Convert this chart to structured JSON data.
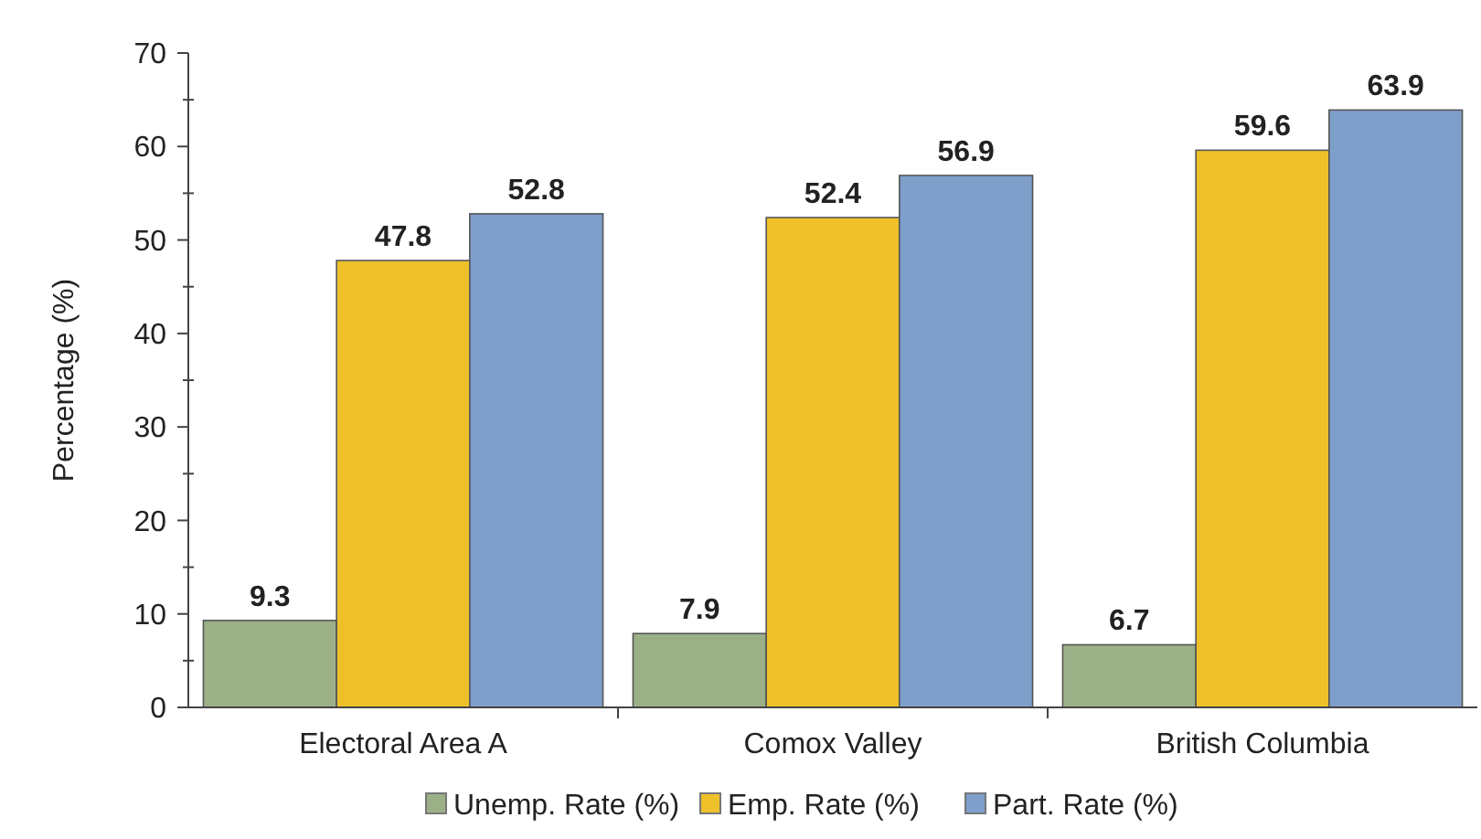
{
  "chart_data": {
    "type": "bar",
    "ylabel": "Percentage (%)",
    "categories": [
      "Electoral Area A",
      "Comox Valley",
      "British Columbia"
    ],
    "series": [
      {
        "name": "Unemp. Rate (%)",
        "color": "#9cb088",
        "values": [
          9.3,
          7.9,
          6.7
        ]
      },
      {
        "name": "Emp. Rate (%)",
        "color": "#eec12a",
        "values": [
          47.8,
          52.4,
          59.6
        ]
      },
      {
        "name": "Part. Rate (%)",
        "color": "#7f9fcb",
        "values": [
          52.8,
          56.9,
          63.9
        ]
      }
    ],
    "ylim": [
      0,
      70
    ],
    "yticks": [
      0,
      {
        "value": 5,
        "label": null
      },
      10,
      {
        "value": 15,
        "label": null
      },
      20,
      {
        "value": 25,
        "label": null
      },
      30,
      {
        "value": 35,
        "label": null
      },
      40,
      {
        "value": 45,
        "label": null
      },
      50,
      {
        "value": 55,
        "label": null
      },
      60,
      {
        "value": 65,
        "label": null
      },
      70
    ],
    "data_labels": true,
    "legend": "bottom",
    "grid": false
  }
}
